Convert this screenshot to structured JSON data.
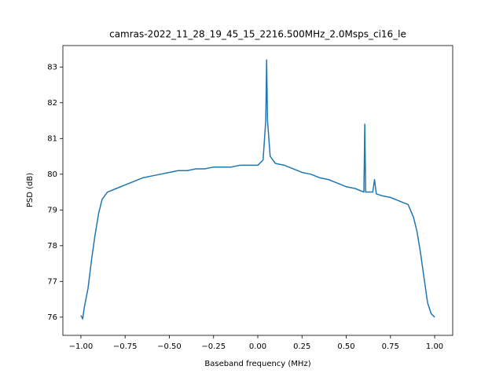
{
  "chart_data": {
    "type": "line",
    "title": "camras-2022_11_28_19_45_15_2216.500MHz_2.0Msps_ci16_le",
    "x_label": "Baseband frequency (MHz)",
    "y_label": "PSD (dB)",
    "x": [
      -1.0,
      -0.99,
      -0.98,
      -0.96,
      -0.94,
      -0.92,
      -0.9,
      -0.88,
      -0.85,
      -0.8,
      -0.75,
      -0.7,
      -0.65,
      -0.6,
      -0.55,
      -0.5,
      -0.45,
      -0.4,
      -0.35,
      -0.3,
      -0.25,
      -0.2,
      -0.15,
      -0.1,
      -0.05,
      0.0,
      0.03,
      0.045,
      0.05,
      0.055,
      0.07,
      0.1,
      0.15,
      0.2,
      0.25,
      0.3,
      0.35,
      0.4,
      0.45,
      0.5,
      0.55,
      0.6,
      0.605,
      0.61,
      0.65,
      0.66,
      0.67,
      0.7,
      0.75,
      0.8,
      0.85,
      0.88,
      0.9,
      0.92,
      0.94,
      0.96,
      0.98,
      1.0
    ],
    "series": [
      {
        "color": "#1f77b4",
        "values": [
          76.05,
          75.95,
          76.3,
          76.8,
          77.6,
          78.3,
          78.9,
          79.3,
          79.5,
          79.6,
          79.7,
          79.8,
          79.9,
          79.95,
          80.0,
          80.05,
          80.1,
          80.1,
          80.15,
          80.15,
          80.2,
          80.2,
          80.2,
          80.25,
          80.25,
          80.25,
          80.4,
          81.5,
          83.2,
          81.5,
          80.5,
          80.3,
          80.25,
          80.15,
          80.05,
          80.0,
          79.9,
          79.85,
          79.75,
          79.65,
          79.6,
          79.5,
          81.4,
          79.5,
          79.5,
          79.85,
          79.45,
          79.4,
          79.35,
          79.25,
          79.15,
          78.8,
          78.4,
          77.8,
          77.1,
          76.4,
          76.1,
          76.0
        ]
      }
    ],
    "xlim": [
      -1.102,
      1.102
    ],
    "ylim": [
      75.49,
      83.6
    ],
    "xticks": [
      {
        "value": -1,
        "label": "−1.00"
      },
      {
        "value": -0.75,
        "label": "−0.75"
      },
      {
        "value": -0.5,
        "label": "−0.50"
      },
      {
        "value": -0.25,
        "label": "−0.25"
      },
      {
        "value": 0,
        "label": "0.00"
      },
      {
        "value": 0.25,
        "label": "0.25"
      },
      {
        "value": 0.5,
        "label": "0.50"
      },
      {
        "value": 0.75,
        "label": "0.75"
      },
      {
        "value": 1,
        "label": "1.00"
      }
    ],
    "yticks": [
      76,
      77,
      78,
      79,
      80,
      81,
      82,
      83
    ]
  }
}
